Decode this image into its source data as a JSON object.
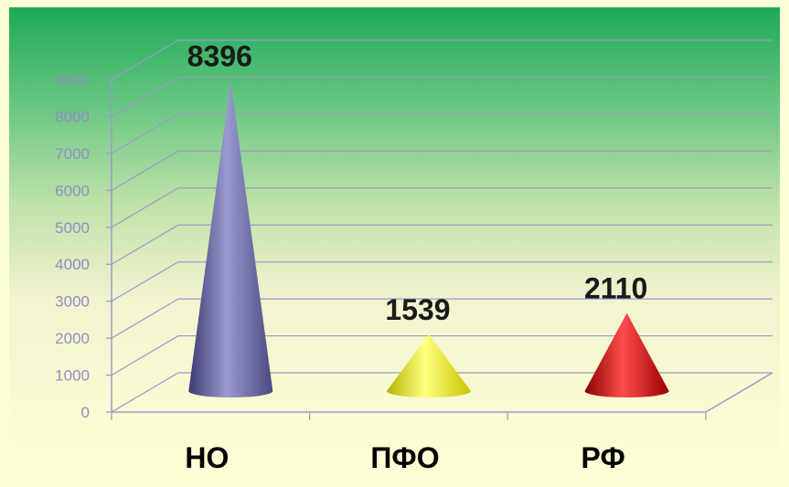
{
  "chart_data": {
    "type": "bar",
    "style": "3d-cone",
    "categories": [
      "НО",
      "ПФО",
      "РФ"
    ],
    "values": [
      8396,
      1539,
      2110
    ],
    "data_labels": [
      "8396",
      "1539",
      "2110"
    ],
    "colors": [
      "#6f6fa6",
      "#f2f200",
      "#e00000"
    ],
    "ylim": [
      0,
      9000
    ],
    "yticks": [
      "0",
      "1000",
      "2000",
      "3000",
      "4000",
      "5000",
      "6000",
      "7000",
      "8000",
      "9000"
    ],
    "grid": true,
    "legend": false,
    "title": "",
    "xlabel": "",
    "ylabel": ""
  }
}
